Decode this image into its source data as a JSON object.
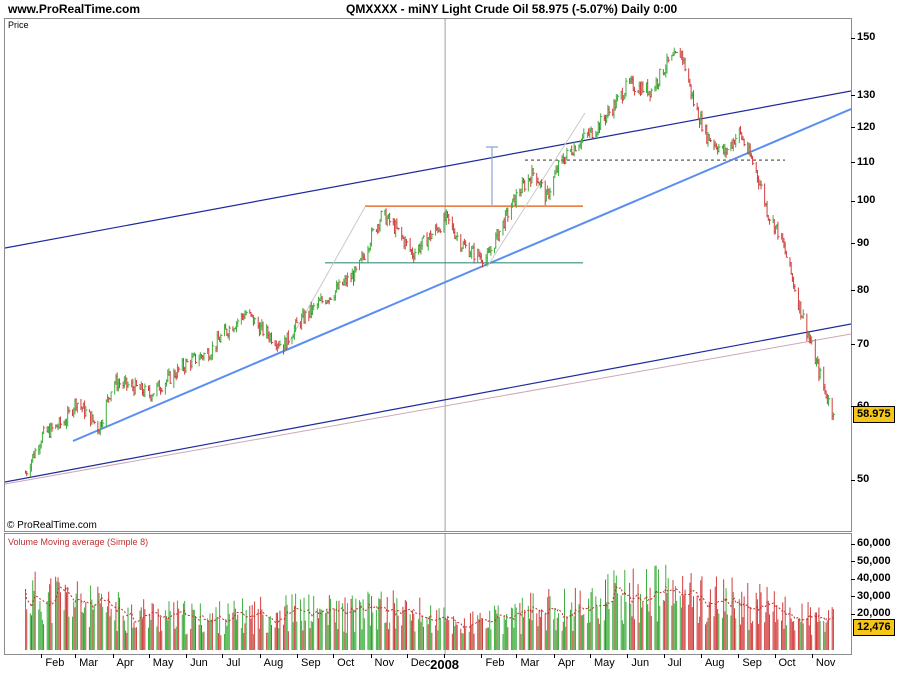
{
  "header": {
    "site": "www.ProRealTime.com",
    "title": "QMXXXX - miNY Light Crude Oil   58.975 (-5.07%)   Daily  0:00"
  },
  "price_panel": {
    "label": "Price",
    "copyright": "© ProRealTime.com",
    "last_badge": "58.975"
  },
  "volume_panel": {
    "label": "Volume Moving average (Simple 8)",
    "last_badge": "12,476"
  },
  "colors": {
    "up": "#3fae3f",
    "down": "#d23c3c",
    "trend_light": "#5a8ef0",
    "channel": "#1e2a9c",
    "resistance": "#e87030",
    "support": "#3a8f7f",
    "volume_ma": "#c03030",
    "badge": "#f5c518"
  },
  "chart_data": [
    {
      "type": "line",
      "title": "QMXXXX - miNY Light Crude Oil",
      "scale": "log",
      "y_ticks": [
        "150",
        "130",
        "120",
        "110",
        "100",
        "90",
        "80",
        "70",
        "60",
        "50"
      ],
      "x_ticks": [
        "Feb",
        "Mar",
        "Apr",
        "May",
        "Jun",
        "Jul",
        "Aug",
        "Sep",
        "Oct",
        "Nov",
        "Dec",
        "2008",
        "Feb",
        "Mar",
        "Apr",
        "May",
        "Jun",
        "Jul",
        "Aug",
        "Sep",
        "Oct",
        "Nov"
      ],
      "ylim": [
        46,
        158
      ],
      "last_price": 58.975,
      "change_pct": -5.07,
      "series": [
        {
          "x": [
            "2007-01-18",
            "2007-02-01",
            "2007-02-20",
            "2007-03-01",
            "2007-03-20",
            "2007-04-01",
            "2007-04-20",
            "2007-05-01",
            "2007-05-20",
            "2007-06-01",
            "2007-06-20",
            "2007-07-01",
            "2007-07-20",
            "2007-08-01",
            "2007-08-20",
            "2007-09-01",
            "2007-09-20",
            "2007-10-01",
            "2007-10-20",
            "2007-11-01",
            "2007-11-10",
            "2007-11-20",
            "2007-12-05",
            "2007-12-20",
            "2008-01-02",
            "2008-01-15",
            "2008-01-25",
            "2008-02-05",
            "2008-02-20",
            "2008-03-01",
            "2008-03-15",
            "2008-03-25",
            "2008-04-05",
            "2008-04-20",
            "2008-05-05",
            "2008-05-20",
            "2008-06-01",
            "2008-06-20",
            "2008-07-03",
            "2008-07-15",
            "2008-07-25",
            "2008-08-05",
            "2008-08-20",
            "2008-09-01",
            "2008-09-15",
            "2008-09-25",
            "2008-10-05",
            "2008-10-20",
            "2008-11-01",
            "2008-11-10",
            "2008-11-18"
          ],
          "values": [
            51,
            56,
            58,
            61,
            57,
            64,
            63,
            62,
            65,
            67,
            69,
            72,
            76,
            73,
            70,
            74,
            78,
            80,
            84,
            92,
            97,
            94,
            88,
            92,
            96,
            90,
            88,
            87,
            96,
            102,
            108,
            101,
            110,
            116,
            120,
            127,
            134,
            132,
            141,
            145,
            128,
            118,
            113,
            119,
            108,
            97,
            92,
            78,
            69,
            63,
            58.975
          ]
        }
      ],
      "annotations": {
        "resistance": 99,
        "support": 86,
        "target_line": 111
      }
    },
    {
      "type": "bar",
      "title": "Volume Moving average (Simple 8)",
      "y_ticks": [
        "60,000",
        "50,000",
        "40,000",
        "30,000",
        "20,000"
      ],
      "ylim": [
        0,
        62000
      ],
      "last_value": 12476,
      "x": [
        "2007-02",
        "2007-03",
        "2007-04",
        "2007-05",
        "2007-06",
        "2007-07",
        "2007-08",
        "2007-09",
        "2007-10",
        "2007-11",
        "2007-12",
        "2008-01",
        "2008-02",
        "2008-03",
        "2008-04",
        "2008-05",
        "2008-06",
        "2008-07",
        "2008-08",
        "2008-09",
        "2008-10",
        "2008-11"
      ],
      "values": [
        30000,
        24000,
        21000,
        19000,
        18000,
        19000,
        22000,
        21000,
        21000,
        23000,
        19000,
        14000,
        17000,
        22000,
        24000,
        29000,
        33000,
        31000,
        28000,
        25000,
        20000,
        16000
      ]
    }
  ]
}
